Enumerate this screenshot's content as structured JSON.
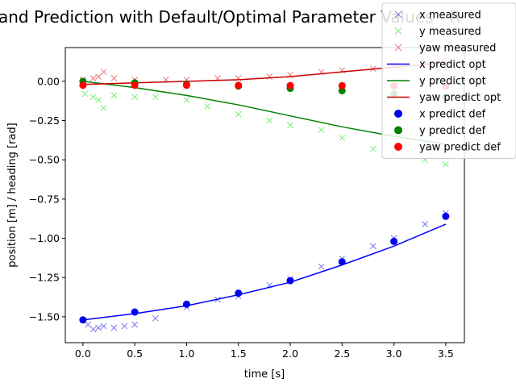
{
  "chart_data": {
    "type": "scatter",
    "title": "and Prediction with Default/Optimal Parameter Values - R",
    "xlabel": "time [s]",
    "ylabel": "position [m] / heading [rad]",
    "xlim": [
      -0.17,
      3.68
    ],
    "ylim": [
      -1.665,
      0.215
    ],
    "xticks": [
      0.0,
      0.5,
      1.0,
      1.5,
      2.0,
      2.5,
      3.0,
      3.5
    ],
    "xtick_labels": [
      "0.0",
      "0.5",
      "1.0",
      "1.5",
      "2.0",
      "2.5",
      "3.0",
      "3.5"
    ],
    "yticks": [
      0.0,
      -0.25,
      -0.5,
      -0.75,
      -1.0,
      -1.25,
      -1.5
    ],
    "ytick_labels": [
      "0.00",
      "−0.25",
      "−0.50",
      "−0.75",
      "−1.00",
      "−1.25",
      "−1.50"
    ],
    "legend_position": "top-right",
    "series": [
      {
        "name": "x measured",
        "kind": "x-marker",
        "color": "#7777ee",
        "x": [
          0.05,
          0.1,
          0.15,
          0.2,
          0.3,
          0.4,
          0.5,
          0.7,
          1.0,
          1.3,
          1.5,
          1.8,
          2.0,
          2.3,
          2.5,
          2.8,
          3.0,
          3.3,
          3.5
        ],
        "y": [
          -1.55,
          -1.58,
          -1.57,
          -1.56,
          -1.57,
          -1.56,
          -1.55,
          -1.51,
          -1.44,
          -1.39,
          -1.37,
          -1.3,
          -1.26,
          -1.18,
          -1.13,
          -1.05,
          -1.0,
          -0.91,
          -0.84
        ]
      },
      {
        "name": "y measured",
        "kind": "x-marker",
        "color": "#77ee77",
        "x": [
          0.02,
          0.1,
          0.15,
          0.2,
          0.3,
          0.5,
          0.7,
          1.0,
          1.2,
          1.5,
          1.8,
          2.0,
          2.3,
          2.5,
          2.8,
          3.0,
          3.3,
          3.5
        ],
        "y": [
          -0.08,
          -0.1,
          -0.12,
          -0.17,
          -0.09,
          -0.1,
          -0.1,
          -0.12,
          -0.16,
          -0.21,
          -0.25,
          -0.28,
          -0.31,
          -0.36,
          -0.43,
          -0.46,
          -0.5,
          -0.53
        ]
      },
      {
        "name": "yaw measured",
        "kind": "x-marker",
        "color": "#ee7777",
        "x": [
          0.0,
          0.1,
          0.15,
          0.2,
          0.3,
          0.5,
          0.8,
          1.0,
          1.3,
          1.5,
          1.8,
          2.0,
          2.3,
          2.5,
          2.8,
          3.0,
          3.3,
          3.5
        ],
        "y": [
          0.01,
          0.02,
          0.03,
          0.06,
          0.02,
          0.01,
          0.01,
          0.01,
          0.02,
          0.02,
          0.03,
          0.04,
          0.06,
          0.07,
          0.08,
          0.1,
          0.12,
          0.13
        ]
      },
      {
        "name": "x predict opt",
        "kind": "line",
        "color": "#0000ff",
        "x": [
          0.0,
          0.5,
          1.0,
          1.5,
          2.0,
          2.5,
          3.0,
          3.5
        ],
        "y": [
          -1.52,
          -1.48,
          -1.43,
          -1.36,
          -1.28,
          -1.17,
          -1.05,
          -0.91
        ]
      },
      {
        "name": "y predict opt",
        "kind": "line",
        "color": "#008000",
        "x": [
          0.0,
          0.5,
          1.0,
          1.5,
          2.0,
          2.5,
          3.0,
          3.5
        ],
        "y": [
          0.0,
          -0.04,
          -0.09,
          -0.15,
          -0.22,
          -0.29,
          -0.35,
          -0.4
        ]
      },
      {
        "name": "yaw predict opt",
        "kind": "line",
        "color": "#cc0000",
        "x": [
          0.0,
          0.5,
          1.0,
          1.5,
          2.0,
          2.5,
          3.0,
          3.5
        ],
        "y": [
          -0.02,
          -0.01,
          0.0,
          0.01,
          0.03,
          0.06,
          0.09,
          0.12
        ]
      },
      {
        "name": "x predict def",
        "kind": "dot",
        "color": "#0000ee",
        "x": [
          0.0,
          0.5,
          1.0,
          1.5,
          2.0,
          2.5,
          3.0,
          3.5
        ],
        "y": [
          -1.52,
          -1.47,
          -1.42,
          -1.35,
          -1.27,
          -1.15,
          -1.02,
          -0.86
        ]
      },
      {
        "name": "y predict def",
        "kind": "dot",
        "color": "#008000",
        "x": [
          0.0,
          0.5,
          1.0,
          1.5,
          2.0,
          2.5,
          3.0,
          3.5
        ],
        "y": [
          0.0,
          -0.01,
          -0.02,
          -0.03,
          -0.045,
          -0.06,
          -0.08,
          -0.1
        ]
      },
      {
        "name": "yaw predict def",
        "kind": "dot",
        "color": "#ff0000",
        "x": [
          0.0,
          0.5,
          1.0,
          1.5,
          2.0,
          2.5,
          3.0,
          3.5
        ],
        "y": [
          -0.025,
          -0.025,
          -0.025,
          -0.026,
          -0.027,
          -0.028,
          -0.029,
          -0.03
        ]
      }
    ]
  }
}
